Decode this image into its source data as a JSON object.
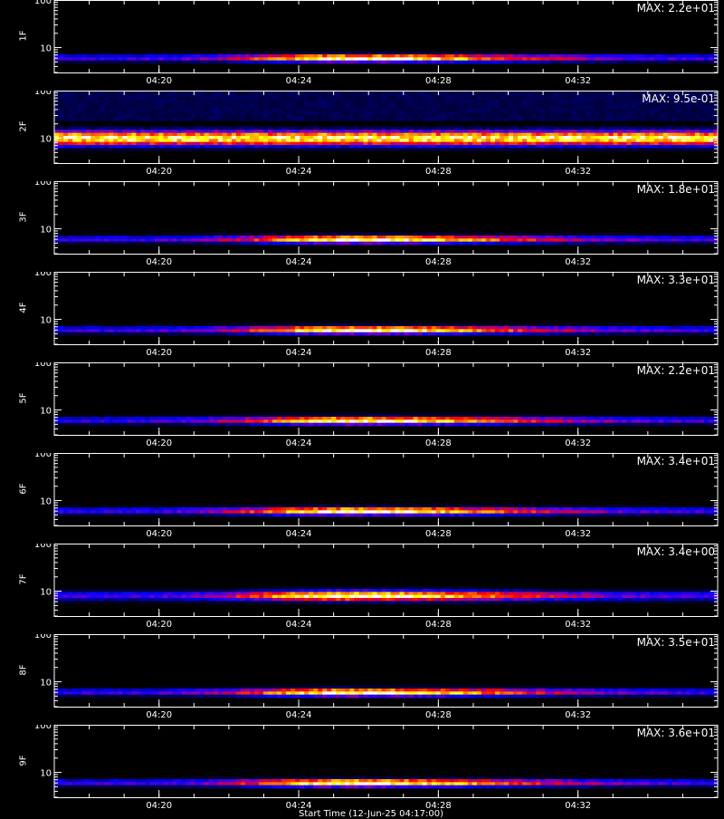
{
  "chart_data": {
    "type": "heatmap",
    "colormap": [
      "#000000",
      "#000044",
      "#0000ff",
      "#8000c0",
      "#ff0000",
      "#ff8000",
      "#ffff00",
      "#ffffff"
    ],
    "x_tick_labels": [
      "04:20",
      "04:24",
      "04:28",
      "04:32"
    ],
    "x_range": [
      "04:17:00",
      "04:36:00"
    ],
    "y_scale": "log",
    "y_range": [
      3,
      100
    ],
    "y_tick_labels": [
      "10",
      "100"
    ],
    "panels": [
      {
        "label": "1F",
        "max_label": "MAX: 2.2e+01",
        "band_center": 6,
        "band_width": 0.6,
        "peak": "04:25:30"
      },
      {
        "label": "2F",
        "max_label": "MAX: 9.5e-01",
        "band_center": 10,
        "band_width": 1.2,
        "peak": "uniform"
      },
      {
        "label": "3F",
        "max_label": "MAX: 1.8e+01",
        "band_center": 6,
        "band_width": 0.6,
        "peak": "04:25:30"
      },
      {
        "label": "4F",
        "max_label": "MAX: 3.3e+01",
        "band_center": 6,
        "band_width": 0.6,
        "peak": "04:25:30"
      },
      {
        "label": "5F",
        "max_label": "MAX: 2.2e+01",
        "band_center": 6,
        "band_width": 0.6,
        "peak": "04:25:30"
      },
      {
        "label": "6F",
        "max_label": "MAX: 3.4e+01",
        "band_center": 6,
        "band_width": 0.6,
        "peak": "04:25:30"
      },
      {
        "label": "7F",
        "max_label": "MAX: 3.4e+00",
        "band_center": 8,
        "band_width": 0.8,
        "peak": "04:25:30"
      },
      {
        "label": "8F",
        "max_label": "MAX: 3.5e+01",
        "band_center": 6,
        "band_width": 0.6,
        "peak": "04:25:30"
      },
      {
        "label": "9F",
        "max_label": "MAX: 3.6e+01",
        "band_center": 6,
        "band_width": 0.6,
        "peak": "04:25:30"
      }
    ],
    "footer": "Start Time (12-Jun-25 04:17:00)"
  }
}
